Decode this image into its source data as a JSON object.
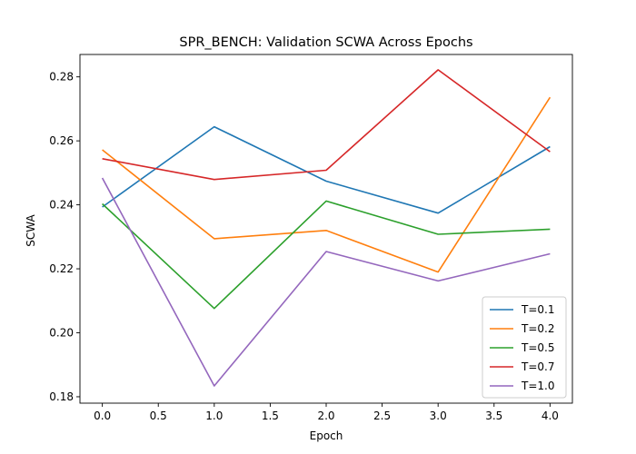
{
  "chart_data": {
    "type": "line",
    "title": "SPR_BENCH: Validation SCWA Across Epochs",
    "xlabel": "Epoch",
    "ylabel": "SCWA",
    "x": [
      0,
      1,
      2,
      3,
      4
    ],
    "xlim": [
      -0.2,
      4.2
    ],
    "ylim": [
      0.178,
      0.287
    ],
    "xticks": [
      "0.0",
      "0.5",
      "1.0",
      "1.5",
      "2.0",
      "2.5",
      "3.0",
      "3.5",
      "4.0"
    ],
    "yticks": [
      "0.18",
      "0.20",
      "0.22",
      "0.24",
      "0.26",
      "0.28"
    ],
    "grid": false,
    "legend_position": "lower-right",
    "series": [
      {
        "name": "T=0.1",
        "color": "#1f77b4",
        "values": [
          0.2393,
          0.2644,
          0.2474,
          0.2374,
          0.2582
        ]
      },
      {
        "name": "T=0.2",
        "color": "#ff7f0e",
        "values": [
          0.2572,
          0.2294,
          0.232,
          0.219,
          0.2736
        ]
      },
      {
        "name": "T=0.5",
        "color": "#2ca02c",
        "values": [
          0.2403,
          0.2076,
          0.2412,
          0.2308,
          0.2324
        ]
      },
      {
        "name": "T=0.7",
        "color": "#d62728",
        "values": [
          0.2544,
          0.2479,
          0.2508,
          0.2822,
          0.2566
        ]
      },
      {
        "name": "T=1.0",
        "color": "#9467bd",
        "values": [
          0.2484,
          0.1834,
          0.2254,
          0.2162,
          0.2247
        ]
      }
    ]
  }
}
